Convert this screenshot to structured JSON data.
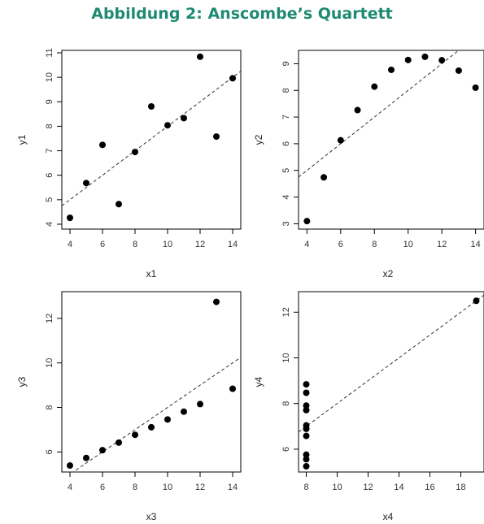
{
  "title": "Abbildung 2: Anscombe’s Quartett",
  "colors": {
    "title": "#1f8a72",
    "points": "#000000",
    "fit_line": "#333333",
    "frame": "#000000"
  },
  "chart_data": [
    {
      "type": "scatter",
      "xlabel": "x1",
      "ylabel": "y1",
      "xlim": [
        3.5,
        14.5
      ],
      "ylim": [
        3.8,
        11.1
      ],
      "xticks": [
        4,
        6,
        8,
        10,
        12,
        14
      ],
      "yticks": [
        4,
        5,
        6,
        7,
        8,
        9,
        10,
        11
      ],
      "x": [
        10,
        8,
        13,
        9,
        11,
        14,
        6,
        4,
        12,
        7,
        5
      ],
      "y": [
        8.04,
        6.95,
        7.58,
        8.81,
        8.33,
        9.96,
        7.24,
        4.26,
        10.84,
        4.82,
        5.68
      ],
      "fit": {
        "intercept": 3.0,
        "slope": 0.5
      },
      "grid": false
    },
    {
      "type": "scatter",
      "xlabel": "x2",
      "ylabel": "y2",
      "xlim": [
        3.5,
        14.5
      ],
      "ylim": [
        2.8,
        9.5
      ],
      "xticks": [
        4,
        6,
        8,
        10,
        12,
        14
      ],
      "yticks": [
        3,
        4,
        5,
        6,
        7,
        8,
        9
      ],
      "x": [
        10,
        8,
        13,
        9,
        11,
        14,
        6,
        4,
        12,
        7,
        5
      ],
      "y": [
        9.14,
        8.14,
        8.74,
        8.77,
        9.26,
        8.1,
        6.13,
        3.1,
        9.13,
        7.26,
        4.74
      ],
      "fit": {
        "intercept": 3.0,
        "slope": 0.5
      },
      "grid": false
    },
    {
      "type": "scatter",
      "xlabel": "x3",
      "ylabel": "y3",
      "xlim": [
        3.5,
        14.5
      ],
      "ylim": [
        5.1,
        13.2
      ],
      "xticks": [
        4,
        6,
        8,
        10,
        12,
        14
      ],
      "yticks": [
        6,
        8,
        10,
        12
      ],
      "x": [
        10,
        8,
        13,
        9,
        11,
        14,
        6,
        4,
        12,
        7,
        5
      ],
      "y": [
        7.46,
        6.77,
        12.74,
        7.11,
        7.81,
        8.84,
        6.08,
        5.39,
        8.15,
        6.42,
        5.73
      ],
      "fit": {
        "intercept": 3.0,
        "slope": 0.5
      },
      "grid": false
    },
    {
      "type": "scatter",
      "xlabel": "x4",
      "ylabel": "y4",
      "xlim": [
        7.5,
        19.5
      ],
      "ylim": [
        5.0,
        12.9
      ],
      "xticks": [
        8,
        10,
        12,
        14,
        16,
        18
      ],
      "yticks": [
        6,
        8,
        10,
        12
      ],
      "x": [
        8,
        8,
        8,
        8,
        8,
        8,
        8,
        19,
        8,
        8,
        8
      ],
      "y": [
        6.58,
        5.76,
        7.71,
        8.84,
        8.47,
        7.04,
        5.25,
        12.5,
        5.56,
        7.91,
        6.89
      ],
      "fit": {
        "intercept": 3.0,
        "slope": 0.5
      },
      "grid": false
    }
  ]
}
